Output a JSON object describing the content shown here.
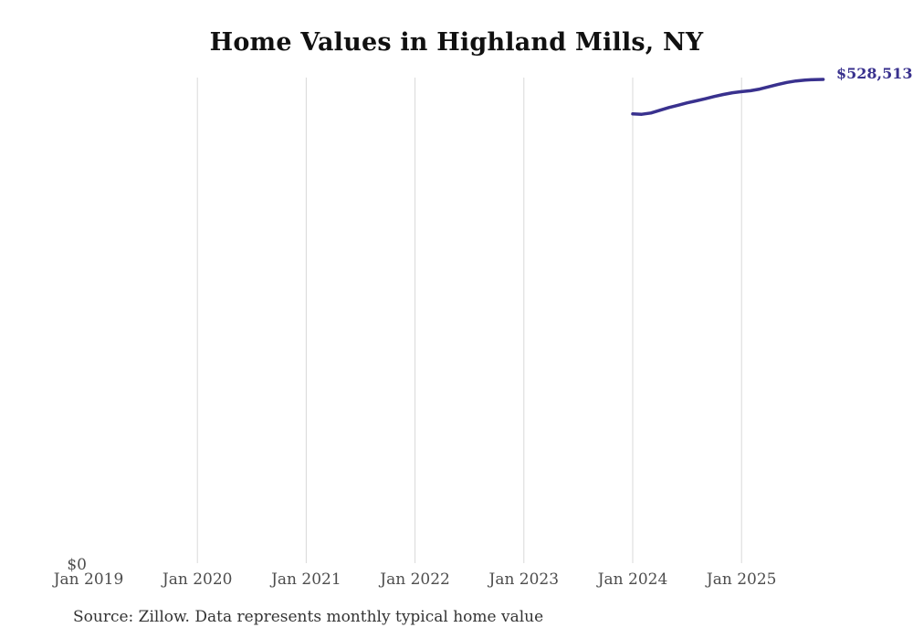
{
  "chart_data": {
    "type": "line",
    "title": "Home Values in Highland Mills, NY",
    "source": "Source: Zillow. Data represents monthly typical home value",
    "xlabel": "",
    "ylabel": "",
    "x_ticks": [
      "Jan 2019",
      "Jan 2020",
      "Jan 2021",
      "Jan 2022",
      "Jan 2023",
      "Jan 2024",
      "Jan 2025"
    ],
    "y_tick": "$0",
    "end_label": "$528,513",
    "ylim": [
      0,
      535000
    ],
    "grid": "vertical gridlines at each January from 2020 to 2025",
    "legend": "none",
    "series": [
      {
        "name": "Monthly typical home value",
        "months": [
          "Jan 2024",
          "Feb 2024",
          "Mar 2024",
          "Apr 2024",
          "May 2024",
          "Jun 2024",
          "Jul 2024",
          "Aug 2024",
          "Sep 2024",
          "Oct 2024",
          "Nov 2024",
          "Dec 2024",
          "Jan 2025",
          "Feb 2025",
          "Mar 2025",
          "Apr 2025",
          "May 2025",
          "Jun 2025",
          "Jul 2025",
          "Aug 2025",
          "Sep 2025",
          "Oct 2025"
        ],
        "values": [
          491000,
          490600,
          492000,
          495000,
          498000,
          500500,
          503000,
          505200,
          507500,
          510000,
          512200,
          514000,
          515200,
          516200,
          518000,
          520500,
          523000,
          525200,
          526800,
          527800,
          528300,
          528513
        ]
      }
    ],
    "colors": {
      "line": "#39318e",
      "grid": "#d9d9d9",
      "tick": "#4d4d4d",
      "title": "#111111",
      "source": "#333333"
    }
  }
}
